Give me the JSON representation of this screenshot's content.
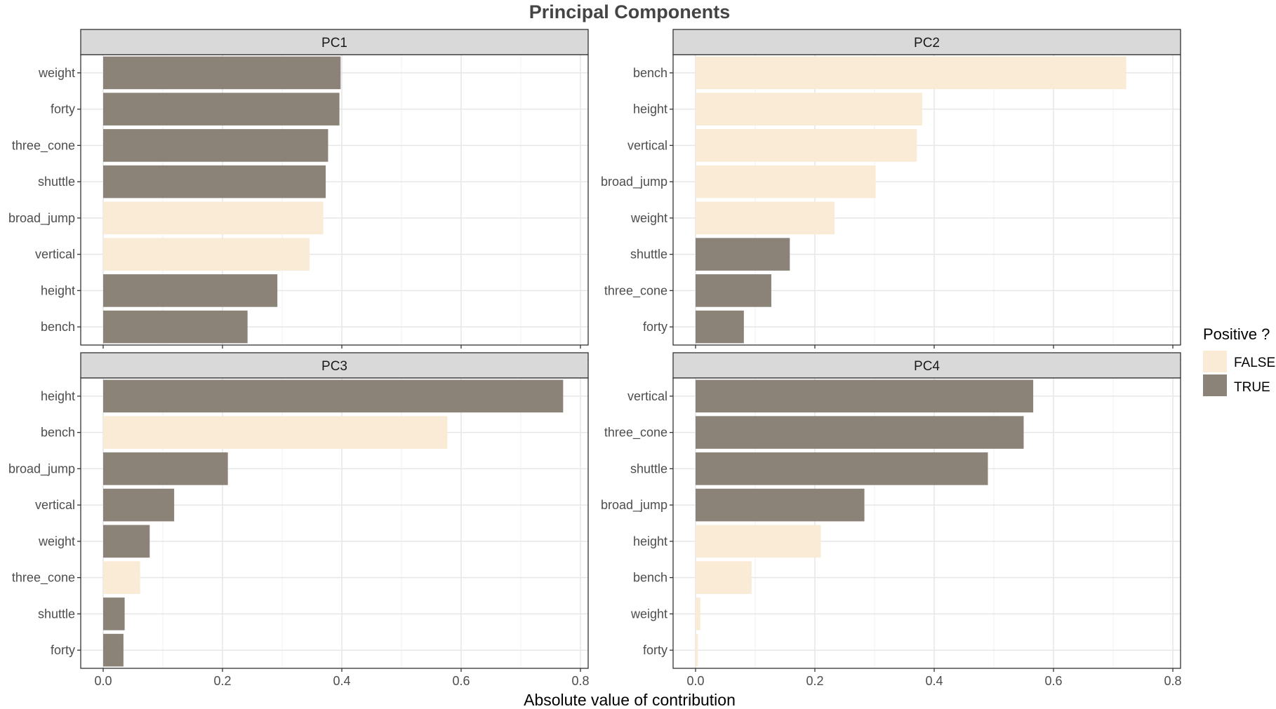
{
  "chart_data": {
    "type": "bar",
    "orientation": "horizontal",
    "title": "Principal Components",
    "xlabel": "Absolute value of contribution",
    "xlim": [
      0,
      0.8
    ],
    "xticks": [
      "0.0",
      "0.2",
      "0.4",
      "0.6",
      "0.8"
    ],
    "grid": true,
    "legend": {
      "title": "Positive ?",
      "position": "right",
      "entries": [
        {
          "label": "FALSE",
          "color": "#FAEBD7"
        },
        {
          "label": "TRUE",
          "color": "#8B8378"
        }
      ]
    },
    "panels": [
      {
        "name": "PC1",
        "categories": [
          "weight",
          "forty",
          "three_cone",
          "shuttle",
          "broad_jump",
          "vertical",
          "height",
          "bench"
        ],
        "values": [
          0.398,
          0.396,
          0.377,
          0.373,
          0.369,
          0.346,
          0.292,
          0.242
        ],
        "positive": [
          "TRUE",
          "TRUE",
          "TRUE",
          "TRUE",
          "FALSE",
          "FALSE",
          "TRUE",
          "TRUE"
        ]
      },
      {
        "name": "PC2",
        "categories": [
          "bench",
          "height",
          "vertical",
          "broad_jump",
          "weight",
          "shuttle",
          "three_cone",
          "forty"
        ],
        "values": [
          0.722,
          0.38,
          0.371,
          0.302,
          0.233,
          0.158,
          0.127,
          0.081
        ],
        "positive": [
          "FALSE",
          "FALSE",
          "FALSE",
          "FALSE",
          "FALSE",
          "TRUE",
          "TRUE",
          "TRUE"
        ]
      },
      {
        "name": "PC3",
        "categories": [
          "height",
          "bench",
          "broad_jump",
          "vertical",
          "weight",
          "three_cone",
          "shuttle",
          "forty"
        ],
        "values": [
          0.771,
          0.577,
          0.209,
          0.119,
          0.078,
          0.062,
          0.036,
          0.034
        ],
        "positive": [
          "TRUE",
          "FALSE",
          "TRUE",
          "TRUE",
          "TRUE",
          "FALSE",
          "TRUE",
          "TRUE"
        ]
      },
      {
        "name": "PC4",
        "categories": [
          "vertical",
          "three_cone",
          "shuttle",
          "broad_jump",
          "height",
          "bench",
          "weight",
          "forty"
        ],
        "values": [
          0.566,
          0.55,
          0.49,
          0.283,
          0.21,
          0.094,
          0.008,
          0.004
        ],
        "positive": [
          "TRUE",
          "TRUE",
          "TRUE",
          "TRUE",
          "FALSE",
          "FALSE",
          "FALSE",
          "FALSE"
        ]
      }
    ]
  }
}
